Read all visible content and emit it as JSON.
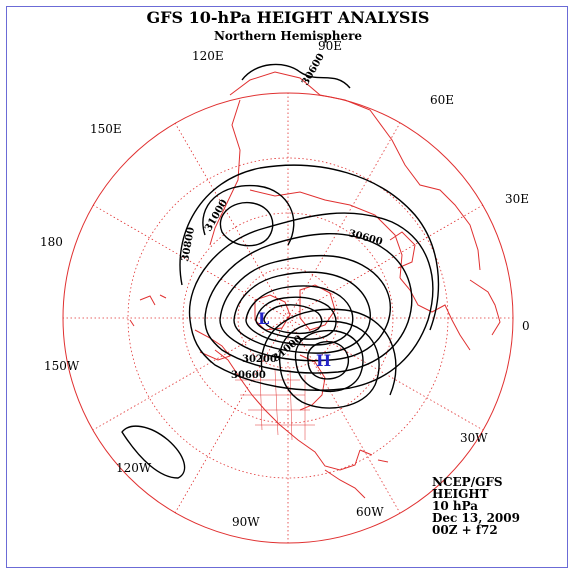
{
  "map": {
    "title": "GFS 10-hPa HEIGHT ANALYSIS",
    "subtitle": "Northern Hemisphere"
  },
  "longitude_labels": [
    "90E",
    "60E",
    "30E",
    "0",
    "30W",
    "60W",
    "90W",
    "120W",
    "150W",
    "180",
    "150E",
    "120E"
  ],
  "contour_labels": [
    "30600",
    "31000",
    "30800",
    "30600",
    "30600",
    "30200",
    "31000"
  ],
  "markers": {
    "low": "L",
    "high": "H"
  },
  "info": {
    "source": "NCEP/GFS",
    "variable": "HEIGHT",
    "level": "10 hPa",
    "date": "Dec 13, 2009",
    "forecast": "00Z + f72"
  },
  "colors": {
    "coastline": "#e03030",
    "contour": "#000000",
    "marker": "#2323c8",
    "frame": "#6b6bd6"
  }
}
